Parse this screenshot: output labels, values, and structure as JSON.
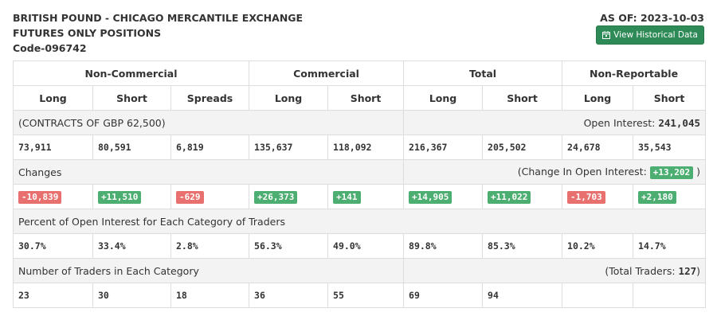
{
  "header": {
    "line1": "BRITISH POUND - CHICAGO MERCANTILE EXCHANGE",
    "line2": "FUTURES ONLY POSITIONS",
    "code": "Code-096742",
    "as_of": "AS OF: 2023-10-03",
    "history_button": "View Historical Data",
    "history_icon": "calendar-icon"
  },
  "groups": [
    "Non-Commercial",
    "Commercial",
    "Total",
    "Non-Reportable"
  ],
  "columns": [
    "Long",
    "Short",
    "Spreads",
    "Long",
    "Short",
    "Long",
    "Short",
    "Long",
    "Short"
  ],
  "contracts": {
    "label": "(CONTRACTS OF GBP 62,500)",
    "oi_label": "Open Interest:",
    "oi_value": "241,045",
    "values": [
      "73,911",
      "80,591",
      "6,819",
      "135,637",
      "118,092",
      "216,367",
      "205,502",
      "24,678",
      "35,543"
    ]
  },
  "changes": {
    "label": "Changes",
    "coi_prefix": "(Change In Open Interest:",
    "coi_value": "+13,202",
    "coi_suffix": ")",
    "values": [
      "-10,839",
      "+11,510",
      "-629",
      "+26,373",
      "+141",
      "+14,905",
      "+11,022",
      "-1,703",
      "+2,180"
    ]
  },
  "percent": {
    "label": "Percent of Open Interest for Each Category of Traders",
    "values": [
      "30.7%",
      "33.4%",
      "2.8%",
      "56.3%",
      "49.0%",
      "89.8%",
      "85.3%",
      "10.2%",
      "14.7%"
    ]
  },
  "traders": {
    "label": "Number of Traders in Each Category",
    "total_prefix": "(Total Traders:",
    "total_value": "127",
    "total_suffix": ")",
    "values": [
      "23",
      "30",
      "18",
      "36",
      "55",
      "69",
      "94",
      "",
      ""
    ]
  },
  "colors": {
    "positive": "#4cae70",
    "negative": "#e8706e",
    "button": "#2e8b57"
  }
}
